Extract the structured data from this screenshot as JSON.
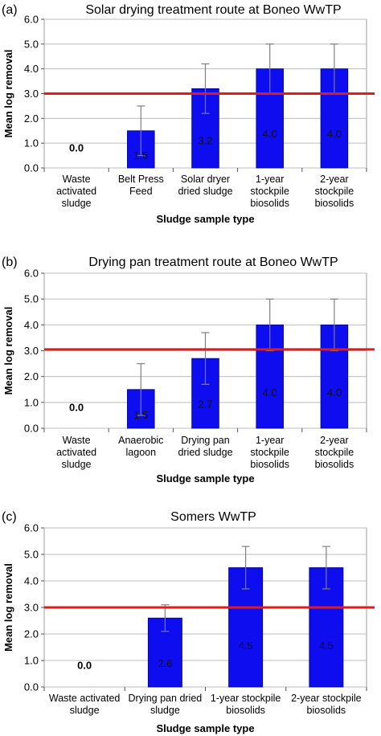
{
  "colors": {
    "bar": "#0d0df0",
    "threshold": "#e31a1c",
    "grid": "#bdbdbd",
    "errorbar": "#808080"
  },
  "chart_data": [
    {
      "panel": "(a)",
      "type": "bar",
      "title": "Solar drying treatment route at Boneo WwTP",
      "xlabel": "Sludge sample type",
      "ylabel": "Mean log removal",
      "ylim": [
        0,
        6
      ],
      "yticks": [
        "0.0",
        "1.0",
        "2.0",
        "3.0",
        "4.0",
        "5.0",
        "6.0"
      ],
      "grid": true,
      "categories": [
        [
          "Waste",
          "activated",
          "sludge"
        ],
        [
          "Belt Press",
          "Feed"
        ],
        [
          "Solar dryer",
          "dried sludge"
        ],
        [
          "1-year",
          "stockpile",
          "biosolids"
        ],
        [
          "2-year",
          "stockpile",
          "biosolids"
        ]
      ],
      "values": [
        0.0,
        1.5,
        3.2,
        4.0,
        4.0
      ],
      "data_labels": [
        "0.0",
        "1.5",
        "3.2",
        "4.0",
        "4.0"
      ],
      "error": [
        0,
        1.0,
        1.0,
        1.0,
        1.0
      ],
      "threshold": 3.0
    },
    {
      "panel": "(b)",
      "type": "bar",
      "title": "Drying pan treatment route at Boneo WwTP",
      "xlabel": "Sludge sample type",
      "ylabel": "Mean log removal",
      "ylim": [
        0,
        6
      ],
      "yticks": [
        "0.0",
        "1.0",
        "2.0",
        "3.0",
        "4.0",
        "5.0",
        "6.0"
      ],
      "grid": true,
      "categories": [
        [
          "Waste",
          "activated",
          "sludge"
        ],
        [
          "Anaerobic",
          "lagoon"
        ],
        [
          "Drying pan",
          "dried sludge"
        ],
        [
          "1-year",
          "stockpile",
          "biosolids"
        ],
        [
          "2-year",
          "stockpile",
          "biosolids"
        ]
      ],
      "values": [
        0.0,
        1.5,
        2.7,
        4.0,
        4.0
      ],
      "data_labels": [
        "0.0",
        "1.5",
        "2.7",
        "4.0",
        "4.0"
      ],
      "error": [
        0,
        1.0,
        1.0,
        1.0,
        1.0
      ],
      "threshold": 3.05
    },
    {
      "panel": "(c)",
      "type": "bar",
      "title": "Somers WwTP",
      "xlabel": "Sludge sample type",
      "ylabel": "Mean log removal",
      "ylim": [
        0,
        6
      ],
      "yticks": [
        "0.0",
        "1.0",
        "2.0",
        "3.0",
        "4.0",
        "5.0",
        "6.0"
      ],
      "grid": true,
      "categories": [
        [
          "Waste activated",
          "sludge"
        ],
        [
          "Drying pan dried",
          "sludge"
        ],
        [
          "1-year stockpile",
          "biosolids"
        ],
        [
          "2-year stockpile",
          "biosolids"
        ]
      ],
      "values": [
        0.0,
        2.6,
        4.5,
        4.5
      ],
      "data_labels": [
        "0.0",
        "2.6",
        "4.5",
        "4.5"
      ],
      "error": [
        0,
        0.5,
        0.8,
        0.8
      ],
      "threshold": 3.0
    }
  ]
}
